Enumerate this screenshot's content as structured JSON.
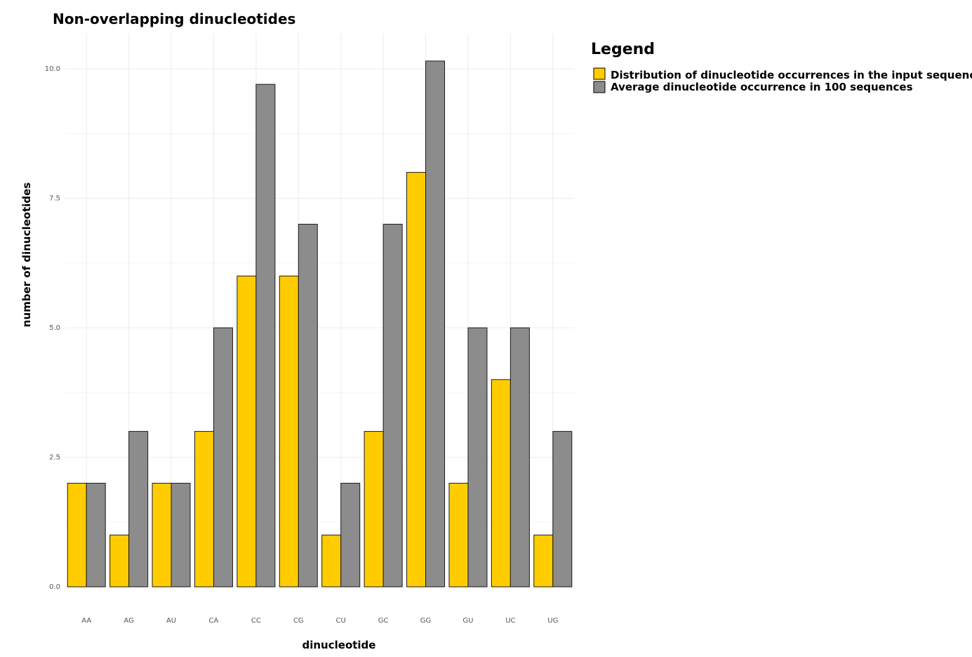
{
  "chart_data": {
    "type": "bar",
    "title": "Non-overlapping dinucleotides",
    "xlabel": "dinucleotide",
    "ylabel": "number of dinucleotides",
    "categories": [
      "AA",
      "AG",
      "AU",
      "CA",
      "CC",
      "CG",
      "CU",
      "GC",
      "GG",
      "GU",
      "UC",
      "UG"
    ],
    "series": [
      {
        "name": "Distribution of dinucleotide occurrences in the input sequence",
        "color": "#FFCC00",
        "values": [
          2,
          1,
          2,
          3,
          6,
          6,
          1,
          3,
          8,
          2,
          4,
          1
        ]
      },
      {
        "name": "Average dinucleotide occurrence in 100 sequences",
        "color": "#8C8C8C",
        "values": [
          2,
          3,
          2,
          5,
          9.7,
          7,
          2,
          7,
          10.15,
          5,
          5,
          3
        ]
      }
    ],
    "ylim": [
      0,
      10.5
    ],
    "yticks": [
      "0.0",
      "2.5",
      "5.0",
      "7.5",
      "10.0"
    ],
    "ytick_values": [
      0,
      2.5,
      5,
      7.5,
      10
    ],
    "grid": true,
    "legend": {
      "title": "Legend",
      "position": "right"
    }
  }
}
